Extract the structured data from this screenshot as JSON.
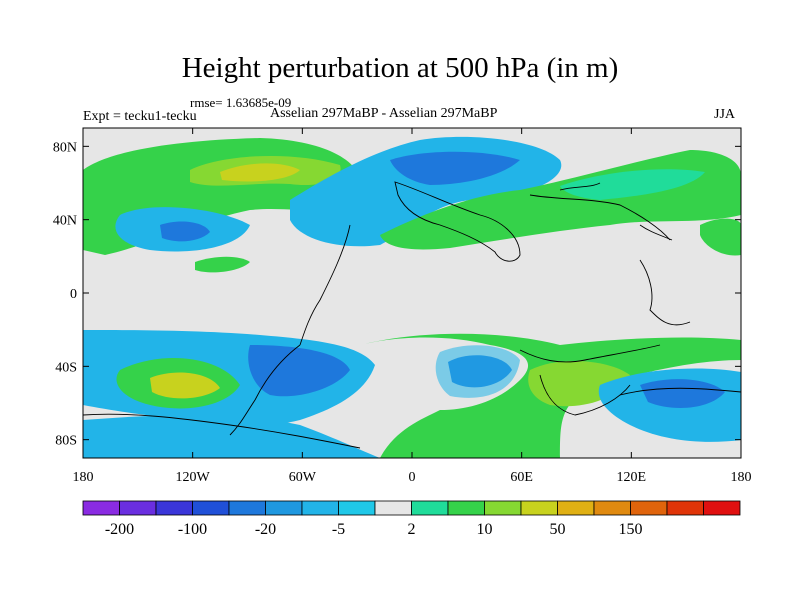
{
  "title": "Height perturbation at 500 hPa (in m)",
  "subtitle_rmse": "rmse= 1.63685e-09",
  "subtitle_left": "Expt = tecku1-tecku",
  "subtitle_center": "Asselian 297MaBP - Asselian 297MaBP",
  "subtitle_right": "JJA",
  "map": {
    "projection": "cylindrical equidistant",
    "lon_range": [
      -180,
      180
    ],
    "lat_range": [
      -90,
      90
    ],
    "x_tick_labels": [
      "180",
      "120W",
      "60W",
      "0",
      "60E",
      "120E",
      "180"
    ],
    "y_tick_labels": [
      "80N",
      "40N",
      "0",
      "40S",
      "80S"
    ],
    "background_color": "#e6e6e6",
    "coastline_color": "#000000"
  },
  "colorbar": {
    "colors": [
      "#8a2be2",
      "#6a2ee0",
      "#3a36d9",
      "#2050d8",
      "#1e78dc",
      "#1f98e0",
      "#22b4e8",
      "#20c8e8",
      "#e6e6e6",
      "#20dc9a",
      "#35d24a",
      "#86d832",
      "#c8d21e",
      "#e0b014",
      "#e08a10",
      "#e0640c",
      "#e03408",
      "#e01010"
    ],
    "labels": [
      "-200",
      "-100",
      "-20",
      "-5",
      "2",
      "10",
      "50",
      "150"
    ]
  }
}
